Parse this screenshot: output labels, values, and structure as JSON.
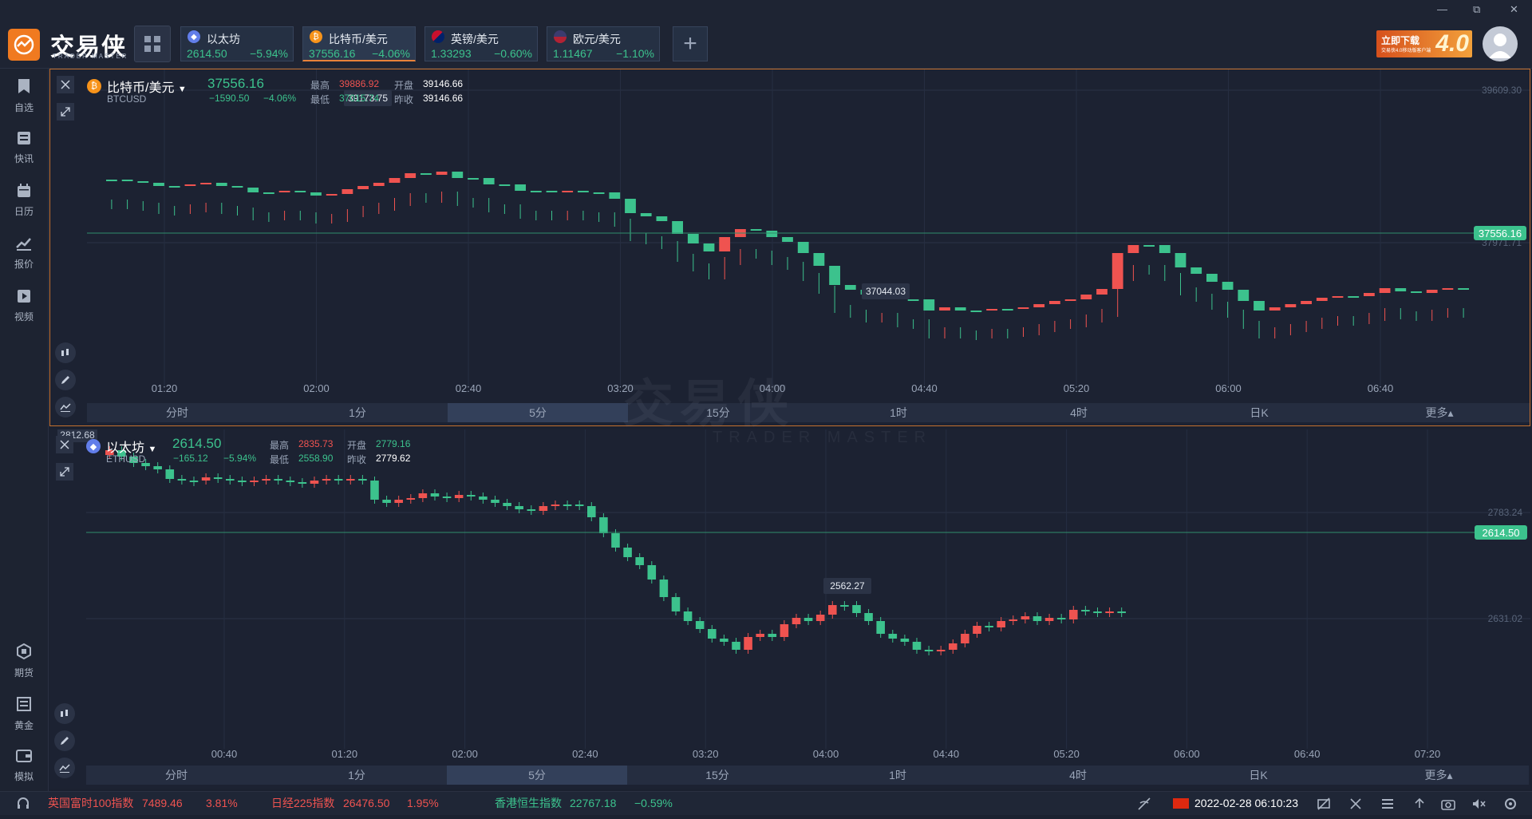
{
  "app": {
    "logo_text": "交易侠",
    "logo_sub": "TRADER MASTER",
    "promo": {
      "line1": "立即下载",
      "line2": "交易侠4.0移动版客户端",
      "badge": "4.0"
    },
    "window_controls": [
      "—",
      "⧉",
      "✕"
    ]
  },
  "tabs": [
    {
      "name": "以太坊",
      "price": "2614.50",
      "change": "−5.94%",
      "icon": "ethereum-icon",
      "icon_color": "#627eea"
    },
    {
      "name": "比特币/美元",
      "price": "37556.16",
      "change": "−4.06%",
      "icon": "bitcoin-icon",
      "icon_color": "#f7931a"
    },
    {
      "name": "英镑/美元",
      "price": "1.33293",
      "change": "−0.60%",
      "icon": "uk-flag-icon",
      "icon_color": "#c8102e"
    },
    {
      "name": "欧元/美元",
      "price": "1.11467",
      "change": "−1.10%",
      "icon": "us-flag-icon",
      "icon_color": "#3c3b6e"
    }
  ],
  "sidebar": {
    "top": [
      {
        "label": "自选",
        "icon": "bookmark-icon"
      },
      {
        "label": "快讯",
        "icon": "news-icon"
      },
      {
        "label": "日历",
        "icon": "calendar-icon"
      },
      {
        "label": "报价",
        "icon": "quote-chart-icon"
      },
      {
        "label": "视频",
        "icon": "video-icon"
      }
    ],
    "bottom": [
      {
        "label": "期货",
        "icon": "futures-icon"
      },
      {
        "label": "黄金",
        "icon": "gold-icon"
      },
      {
        "label": "模拟",
        "icon": "wallet-icon"
      }
    ]
  },
  "panels": [
    {
      "name": "比特币/美元",
      "code": "BTCUSD",
      "coin_icon": "₿",
      "price": "37556.16",
      "change_abs": "−1590.50",
      "change_pct": "−4.06%",
      "stats": {
        "high_label": "最高",
        "high": "39886.92",
        "open_label": "开盘",
        "open": "39146.66",
        "low_label": "最低",
        "low": "37015.74",
        "prevclose_label": "昨收",
        "prevclose": "39146.66"
      },
      "axis_labels": [
        "39609.30",
        "37971.71"
      ],
      "current_price_label": "37556.16",
      "max_marker": "39173.75",
      "min_marker": "37044.03",
      "time_ticks": [
        "01:20",
        "02:00",
        "02:40",
        "03:20",
        "04:00",
        "04:40",
        "05:20",
        "06:00",
        "06:40"
      ]
    },
    {
      "name": "以太坊",
      "code": "ETHUSD",
      "coin_icon": "◆",
      "price": "2614.50",
      "change_abs": "−165.12",
      "change_pct": "−5.94%",
      "stats": {
        "high_label": "最高",
        "high": "2835.73",
        "open_label": "开盘",
        "open": "2779.16",
        "low_label": "最低",
        "low": "2558.90",
        "prevclose_label": "昨收",
        "prevclose": "2779.62"
      },
      "axis_labels": [
        "2783.24",
        "2631.02"
      ],
      "current_price_label": "2614.50",
      "max_marker": "2812.68",
      "min_marker": "2562.27",
      "time_ticks": [
        "00:40",
        "01:20",
        "02:00",
        "02:40",
        "03:20",
        "04:00",
        "04:40",
        "05:20",
        "06:00",
        "06:40",
        "07:20"
      ]
    }
  ],
  "timeframes": [
    "分时",
    "1分",
    "5分",
    "15分",
    "1时",
    "4时",
    "日K",
    "更多▴"
  ],
  "selected_timeframe": "5分",
  "watermark": {
    "main": "交易侠",
    "sub": "TRADER MASTER"
  },
  "statusbar": {
    "indices": [
      {
        "name": "英国富时100指数",
        "value": "7489.46",
        "change": "3.81%",
        "color": "#ef5350"
      },
      {
        "name": "日经225指数",
        "value": "26476.50",
        "change": "1.95%",
        "color": "#ef5350"
      },
      {
        "name": "香港恒生指数",
        "value": "22767.18",
        "change": "−0.59%",
        "color": "#3cc28d"
      }
    ],
    "datetime": "2022-02-28 06:10:23"
  },
  "colors": {
    "up": "#ef5350",
    "down": "#3cc28d",
    "accent": "#e8823a",
    "bg": "#1c2232"
  }
}
